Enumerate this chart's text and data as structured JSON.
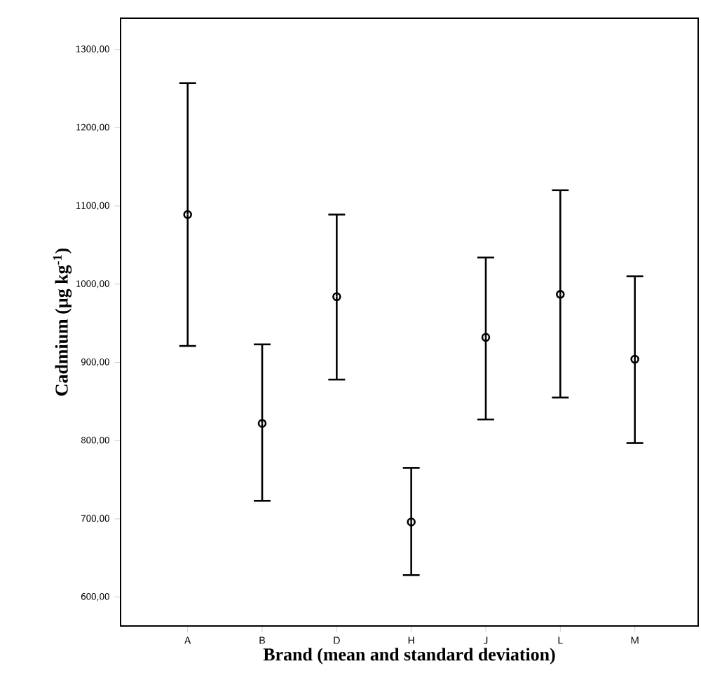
{
  "chart_data": {
    "type": "scatter",
    "xlabel": "Brand (mean and standard deviation)",
    "ylabel": "Cadmium (µg kg$^{-1}$)",
    "categories": [
      "A",
      "B",
      "D",
      "H",
      "J",
      "L",
      "M"
    ],
    "values": [
      1089,
      822,
      984,
      696,
      932,
      987,
      904
    ],
    "errors": [
      [
        921,
        1257
      ],
      [
        723,
        923
      ],
      [
        878,
        1089
      ],
      [
        628,
        765
      ],
      [
        827,
        1034
      ],
      [
        855,
        1120
      ],
      [
        797,
        1010
      ]
    ],
    "color": "#000000",
    "marker": "circle",
    "ylim": [
      563,
      1340
    ],
    "yticks": [
      {
        "value": 600,
        "label": "600,00"
      },
      {
        "value": 700,
        "label": "700,00"
      },
      {
        "value": 800,
        "label": "800,00"
      },
      {
        "value": 900,
        "label": "900,00"
      },
      {
        "value": 1000,
        "label": "1000,00"
      },
      {
        "value": 1100,
        "label": "1100,00"
      },
      {
        "value": 1200,
        "label": "1200,00"
      },
      {
        "value": 1300,
        "label": "1300,00"
      }
    ]
  }
}
